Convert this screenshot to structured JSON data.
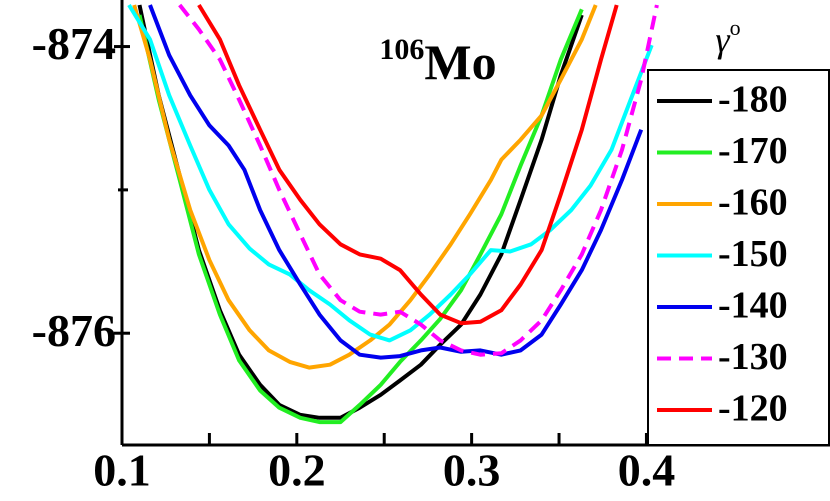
{
  "chart_data": {
    "type": "line",
    "annotation": {
      "sup": "106",
      "text": "Mo"
    },
    "legend_title": "γ",
    "legend_title_sup": "o",
    "legend": "right",
    "xlim": [
      0.1,
      0.505
    ],
    "ylim": [
      -876.78,
      -873.71
    ],
    "xticks": [
      0.1,
      0.2,
      0.3,
      0.4
    ],
    "x_minor_ticks": [
      0.15,
      0.25,
      0.35
    ],
    "yticks": [
      -874,
      -876
    ],
    "y_minor_ticks": [
      -875
    ],
    "series": [
      {
        "name": "-180",
        "color": "#000000",
        "dashed": false,
        "x": [
          0.11,
          0.121,
          0.133,
          0.144,
          0.156,
          0.167,
          0.179,
          0.19,
          0.202,
          0.213,
          0.225,
          0.236,
          0.248,
          0.259,
          0.271,
          0.282,
          0.294,
          0.305,
          0.317,
          0.328,
          0.34,
          0.351,
          0.363
        ],
        "values": [
          -873.71,
          -874.34,
          -874.9,
          -875.42,
          -875.84,
          -876.15,
          -876.36,
          -876.5,
          -876.57,
          -876.59,
          -876.59,
          -876.52,
          -876.43,
          -876.33,
          -876.22,
          -876.08,
          -875.94,
          -875.73,
          -875.45,
          -875.07,
          -874.65,
          -874.2,
          -873.78
        ]
      },
      {
        "name": "-170",
        "color": "#22ee22",
        "dashed": false,
        "x": [
          0.11,
          0.121,
          0.133,
          0.144,
          0.156,
          0.167,
          0.179,
          0.19,
          0.202,
          0.213,
          0.225,
          0.236,
          0.248,
          0.259,
          0.271,
          0.282,
          0.294,
          0.305,
          0.317,
          0.328,
          0.34,
          0.351,
          0.363
        ],
        "values": [
          -873.78,
          -874.37,
          -874.93,
          -875.45,
          -875.87,
          -876.19,
          -876.4,
          -876.52,
          -876.59,
          -876.62,
          -876.62,
          -876.5,
          -876.36,
          -876.2,
          -876.05,
          -875.9,
          -875.7,
          -875.45,
          -875.17,
          -874.83,
          -874.48,
          -874.09,
          -873.74
        ]
      },
      {
        "name": "-160",
        "color": "#ffa500",
        "dashed": false,
        "x": [
          0.107,
          0.116,
          0.127,
          0.139,
          0.15,
          0.161,
          0.173,
          0.184,
          0.196,
          0.207,
          0.219,
          0.23,
          0.242,
          0.253,
          0.265,
          0.276,
          0.288,
          0.299,
          0.311,
          0.317,
          0.328,
          0.34,
          0.351,
          0.363,
          0.371
        ],
        "values": [
          -873.71,
          -874.09,
          -874.65,
          -875.14,
          -875.49,
          -875.77,
          -875.98,
          -876.12,
          -876.2,
          -876.24,
          -876.22,
          -876.15,
          -876.05,
          -875.94,
          -875.77,
          -875.59,
          -875.38,
          -875.17,
          -874.93,
          -874.79,
          -874.65,
          -874.48,
          -874.23,
          -873.95,
          -873.71
        ]
      },
      {
        "name": "-150",
        "color": "#00ffff",
        "dashed": false,
        "x": [
          0.104,
          0.116,
          0.127,
          0.139,
          0.15,
          0.161,
          0.173,
          0.184,
          0.196,
          0.207,
          0.219,
          0.23,
          0.242,
          0.253,
          0.265,
          0.276,
          0.288,
          0.299,
          0.311,
          0.322,
          0.334,
          0.345,
          0.357,
          0.368,
          0.38,
          0.391,
          0.403
        ],
        "values": [
          -873.71,
          -873.95,
          -874.34,
          -874.69,
          -875.0,
          -875.24,
          -875.41,
          -875.52,
          -875.59,
          -875.7,
          -875.8,
          -875.91,
          -876.01,
          -876.05,
          -875.98,
          -875.87,
          -875.73,
          -875.59,
          -875.42,
          -875.43,
          -875.38,
          -875.28,
          -875.14,
          -874.97,
          -874.72,
          -874.37,
          -873.99
        ]
      },
      {
        "name": "-140",
        "color": "#0000ee",
        "dashed": false,
        "x": [
          0.116,
          0.127,
          0.139,
          0.15,
          0.161,
          0.17,
          0.179,
          0.19,
          0.202,
          0.213,
          0.225,
          0.236,
          0.248,
          0.259,
          0.271,
          0.282,
          0.294,
          0.305,
          0.317,
          0.328,
          0.34,
          0.351,
          0.363,
          0.374,
          0.386,
          0.397
        ],
        "values": [
          -873.71,
          -874.06,
          -874.34,
          -874.55,
          -874.69,
          -874.86,
          -875.14,
          -875.42,
          -875.66,
          -875.87,
          -876.05,
          -876.15,
          -876.17,
          -876.16,
          -876.12,
          -876.1,
          -876.13,
          -876.12,
          -876.15,
          -876.12,
          -876.01,
          -875.8,
          -875.56,
          -875.28,
          -874.93,
          -874.58
        ]
      },
      {
        "name": "-130",
        "color": "#ff00ff",
        "dashed": true,
        "x": [
          0.133,
          0.144,
          0.156,
          0.167,
          0.179,
          0.19,
          0.202,
          0.213,
          0.225,
          0.236,
          0.248,
          0.259,
          0.271,
          0.282,
          0.294,
          0.305,
          0.317,
          0.328,
          0.34,
          0.351,
          0.363,
          0.374,
          0.386,
          0.397,
          0.406
        ],
        "values": [
          -873.71,
          -873.88,
          -874.09,
          -874.37,
          -874.69,
          -875.0,
          -875.31,
          -875.59,
          -875.77,
          -875.85,
          -875.87,
          -875.85,
          -875.94,
          -876.05,
          -876.12,
          -876.15,
          -876.14,
          -876.05,
          -875.91,
          -875.7,
          -875.45,
          -875.14,
          -874.72,
          -874.23,
          -873.71
        ]
      },
      {
        "name": "-120",
        "color": "#ff0000",
        "dashed": false,
        "x": [
          0.144,
          0.156,
          0.167,
          0.179,
          0.19,
          0.202,
          0.213,
          0.225,
          0.236,
          0.248,
          0.259,
          0.271,
          0.282,
          0.294,
          0.305,
          0.317,
          0.328,
          0.34,
          0.351,
          0.363,
          0.374,
          0.383
        ],
        "values": [
          -873.71,
          -873.95,
          -874.27,
          -874.58,
          -874.86,
          -875.07,
          -875.24,
          -875.38,
          -875.45,
          -875.48,
          -875.56,
          -875.73,
          -875.87,
          -875.93,
          -875.92,
          -875.84,
          -875.66,
          -875.42,
          -875.03,
          -874.58,
          -874.09,
          -873.71
        ]
      }
    ]
  }
}
